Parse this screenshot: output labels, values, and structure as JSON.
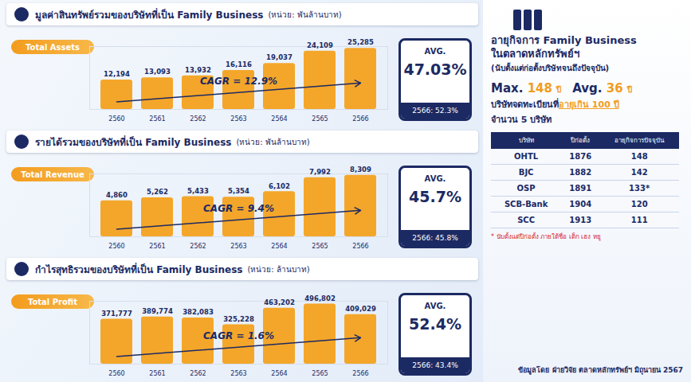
{
  "chart_data": [
    {
      "type": "bar",
      "title": "มูลค่าสินทรัพย์รวมของบริษัทที่เป็น Family Business",
      "subtitle": "(หน่วย: พันล้านบาท)",
      "categories": [
        "2560",
        "2561",
        "2562",
        "2563",
        "2564",
        "2565",
        "2566"
      ],
      "series": [
        {
          "name": "Total Assets",
          "color": "#f4a62a",
          "values": [
            12194,
            13093,
            13932,
            16116,
            19037,
            24109,
            25285
          ],
          "value_labels": [
            "12,194",
            "13,093",
            "13,932",
            "16,116",
            "19,037",
            "24,109",
            "25,285"
          ]
        }
      ],
      "ylim": [
        0,
        26000
      ],
      "data_labels": true,
      "tick_labels": "x",
      "legend": "top-left",
      "annotations": [
        "CAGR = 12.9%"
      ],
      "summary": {
        "label": "AVG.",
        "value_label": "47.03%",
        "note": "2566: 52.3%"
      }
    },
    {
      "type": "bar",
      "title": "รายได้รวมของบริษัทที่เป็น Family Business",
      "subtitle": "(หน่วย: พันล้านบาท)",
      "categories": [
        "2560",
        "2561",
        "2562",
        "2563",
        "2564",
        "2565",
        "2566"
      ],
      "series": [
        {
          "name": "Total Revenue",
          "color": "#f4a62a",
          "values": [
            4860,
            5262,
            5433,
            5354,
            6102,
            7992,
            8309
          ],
          "value_labels": [
            "4,860",
            "5,262",
            "5,433",
            "5,354",
            "6,102",
            "7,992",
            "8,309"
          ]
        }
      ],
      "ylim": [
        0,
        8500
      ],
      "data_labels": true,
      "tick_labels": "x",
      "legend": "top-left",
      "annotations": [
        "CAGR = 9.4%"
      ],
      "summary": {
        "label": "AVG.",
        "value_label": "45.7%",
        "note": "2566: 45.8%"
      }
    },
    {
      "type": "bar",
      "title": "กำไรสุทธิรวมของบริษัทที่เป็น Family Business",
      "subtitle": "(หน่วย: ล้านบาท)",
      "categories": [
        "2560",
        "2561",
        "2562",
        "2563",
        "2564",
        "2565",
        "2566"
      ],
      "series": [
        {
          "name": "Total Profit",
          "color": "#f4a62a",
          "values": [
            371777,
            389774,
            382083,
            325228,
            463202,
            496802,
            409029
          ],
          "value_labels": [
            "371,777",
            "389,774",
            "382,083",
            "325,228",
            "463,202",
            "496,802",
            "409,029"
          ]
        }
      ],
      "ylim": [
        0,
        520000
      ],
      "data_labels": true,
      "tick_labels": "x",
      "legend": "top-left",
      "annotations": [
        "CAGR = 1.6%"
      ],
      "summary": {
        "label": "AVG.",
        "value_label": "52.4%",
        "note": "2566: 43.4%"
      }
    }
  ],
  "side_panel": {
    "title": [
      "อายุกิจการ Family Business",
      "ในตลาดหลักทรัพย์ฯ"
    ],
    "subtitle": "(นับตั้งแต่ก่อตั้งบริษัทจนถึงปัจจุบัน)",
    "stats": [
      {
        "label": "Max.",
        "value": "148",
        "unit": "ปี"
      },
      {
        "label": "Avg.",
        "value": "36",
        "unit": "ปี"
      }
    ],
    "highlight": [
      "บริษัทจดทะเบียนที่",
      "อายุเกิน 100 ปี"
    ],
    "count": "จำนวน 5 บริษัท",
    "table": {
      "header": [
        "บริษัท",
        "ปีก่อตั้ง",
        "อายุกิจการปัจจุบัน"
      ],
      "rows": [
        [
          "OHTL",
          "1876",
          "148"
        ],
        [
          "BJC",
          "1882",
          "142"
        ],
        [
          "OSP",
          "1891",
          "133*"
        ],
        [
          "SCB-Bank",
          "1904",
          "120"
        ],
        [
          "SCC",
          "1913",
          "111"
        ]
      ]
    },
    "footnote": "* นับตั้งแต่ปีก่อตั้ง ภายใต้ชื่อ เต็ก เฮง หยู",
    "source": "ข้อมูลโดย ฝ่ายวิจัย ตลาดหลักทรัพย์ฯ มิถุนายน 2567"
  }
}
